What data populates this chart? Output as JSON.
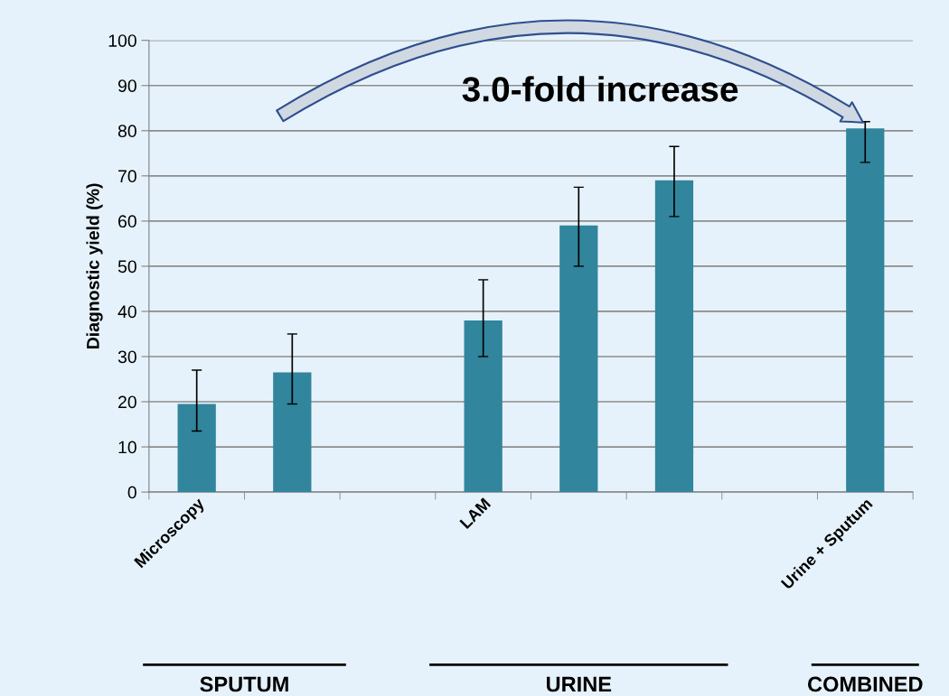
{
  "chart_data": {
    "type": "bar",
    "ylabel": "Diagnostic yield (%)",
    "categories": [
      "Microscopy",
      null,
      null,
      "LAM",
      null,
      null,
      null,
      "Urine + Sputum"
    ],
    "values": [
      19.5,
      26.5,
      null,
      38,
      59,
      69,
      null,
      80.5
    ],
    "errors": [
      [
        13.5,
        27
      ],
      [
        19.5,
        35
      ],
      null,
      [
        30,
        47
      ],
      [
        50,
        67.5
      ],
      [
        61,
        76.5
      ],
      null,
      [
        73,
        82
      ]
    ],
    "color": "#31859c",
    "ylim": [
      0,
      100
    ],
    "yticks": [
      0,
      10,
      20,
      30,
      40,
      50,
      60,
      70,
      80,
      90,
      100
    ],
    "grid": "y",
    "annotations": [
      "3.0-fold increase",
      "SPUTUM",
      "URINE",
      "COMBINED"
    ]
  }
}
